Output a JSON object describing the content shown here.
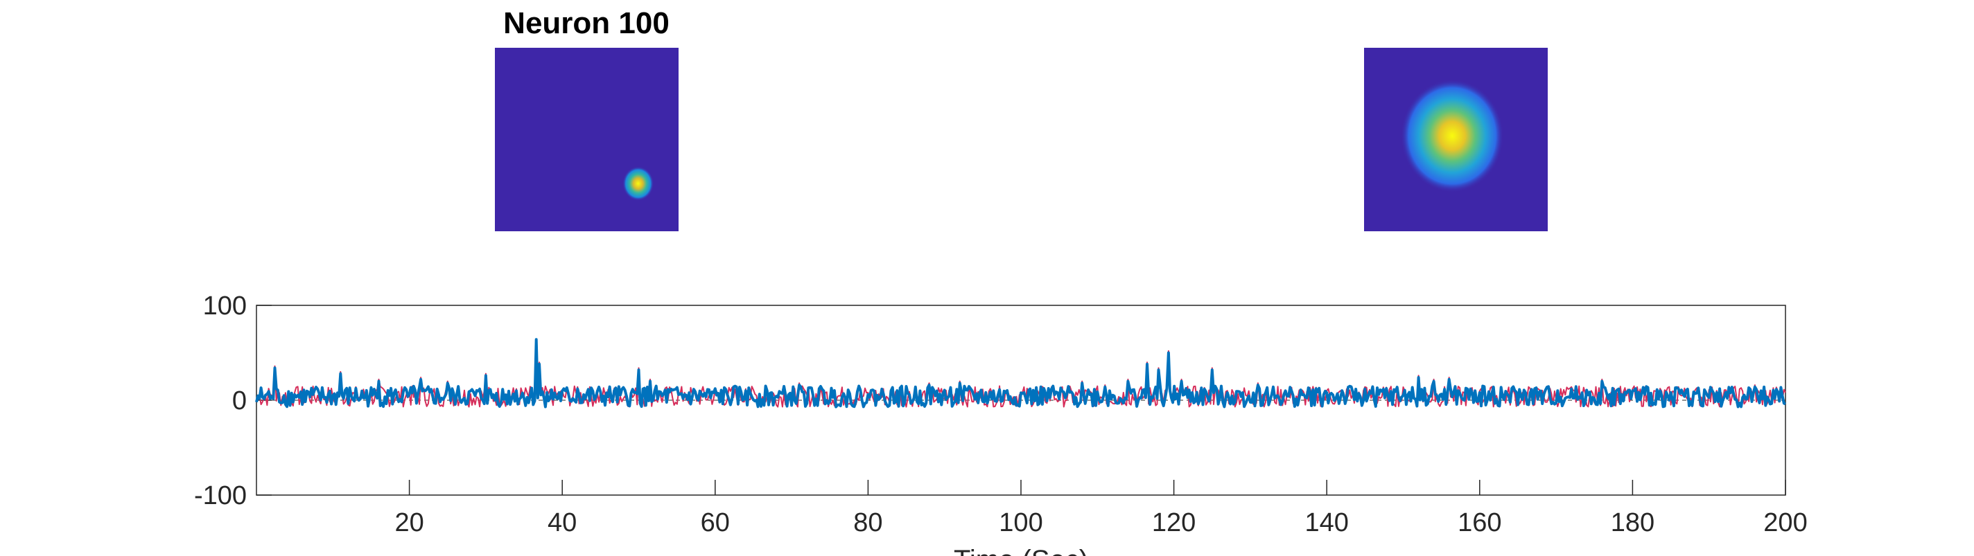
{
  "chart_data": [
    {
      "type": "heatmap",
      "title": "Neuron 100",
      "colormap": "parula",
      "background_color": "#3e26a8",
      "blob": {
        "cx": 0.78,
        "cy": 0.74,
        "r": 0.085,
        "peak_color": "#f9fb0e"
      }
    },
    {
      "type": "heatmap",
      "title": "",
      "colormap": "parula",
      "background_color": "#3e26a8",
      "blob": {
        "cx": 0.48,
        "cy": 0.48,
        "r": 0.28,
        "peak_color": "#f9fb0e"
      }
    },
    {
      "type": "line",
      "title": "",
      "xlabel": "Time (Sec)",
      "ylabel": "",
      "xlim": [
        0,
        200
      ],
      "ylim": [
        -100,
        100
      ],
      "xticks": [
        20,
        40,
        60,
        80,
        100,
        120,
        140,
        160,
        180,
        200
      ],
      "yticks": [
        -100,
        0,
        100
      ],
      "grid": false,
      "series": [
        {
          "color": "#d62d5a",
          "x": [
            0,
            2,
            2.4,
            5,
            11,
            16,
            20,
            21.5,
            25,
            30,
            34,
            36.6,
            37,
            38,
            42,
            50,
            51.5,
            56,
            64,
            71,
            80,
            88,
            92,
            98,
            104,
            108,
            111,
            114,
            116.5,
            118,
            119.3,
            121,
            125,
            127,
            131,
            140,
            145,
            152,
            154,
            156,
            160,
            172,
            176,
            180,
            186,
            191,
            196,
            200
          ],
          "values": [
            2,
            5,
            36,
            8,
            30,
            22,
            8,
            24,
            20,
            28,
            12,
            62,
            40,
            10,
            14,
            34,
            22,
            8,
            12,
            18,
            8,
            18,
            20,
            10,
            14,
            20,
            16,
            22,
            40,
            34,
            52,
            22,
            34,
            10,
            18,
            10,
            14,
            26,
            22,
            24,
            10,
            14,
            22,
            12,
            14,
            10,
            16,
            8
          ]
        },
        {
          "color": "#0072bd",
          "x": [
            0,
            2,
            2.4,
            5,
            11,
            16,
            20,
            21.5,
            25,
            30,
            34,
            36.6,
            37,
            38,
            42,
            50,
            51.5,
            56,
            64,
            71,
            80,
            88,
            92,
            98,
            104,
            108,
            111,
            114,
            116.5,
            118,
            119.3,
            121,
            125,
            127,
            131,
            140,
            145,
            152,
            154,
            156,
            160,
            172,
            176,
            180,
            186,
            191,
            196,
            200
          ],
          "values": [
            -2,
            4,
            34,
            6,
            28,
            20,
            6,
            22,
            18,
            26,
            10,
            64,
            38,
            8,
            12,
            32,
            20,
            6,
            10,
            16,
            6,
            16,
            18,
            8,
            12,
            18,
            14,
            20,
            38,
            32,
            50,
            20,
            32,
            8,
            16,
            8,
            12,
            24,
            20,
            22,
            8,
            12,
            20,
            10,
            12,
            8,
            14,
            -4
          ]
        }
      ]
    }
  ]
}
